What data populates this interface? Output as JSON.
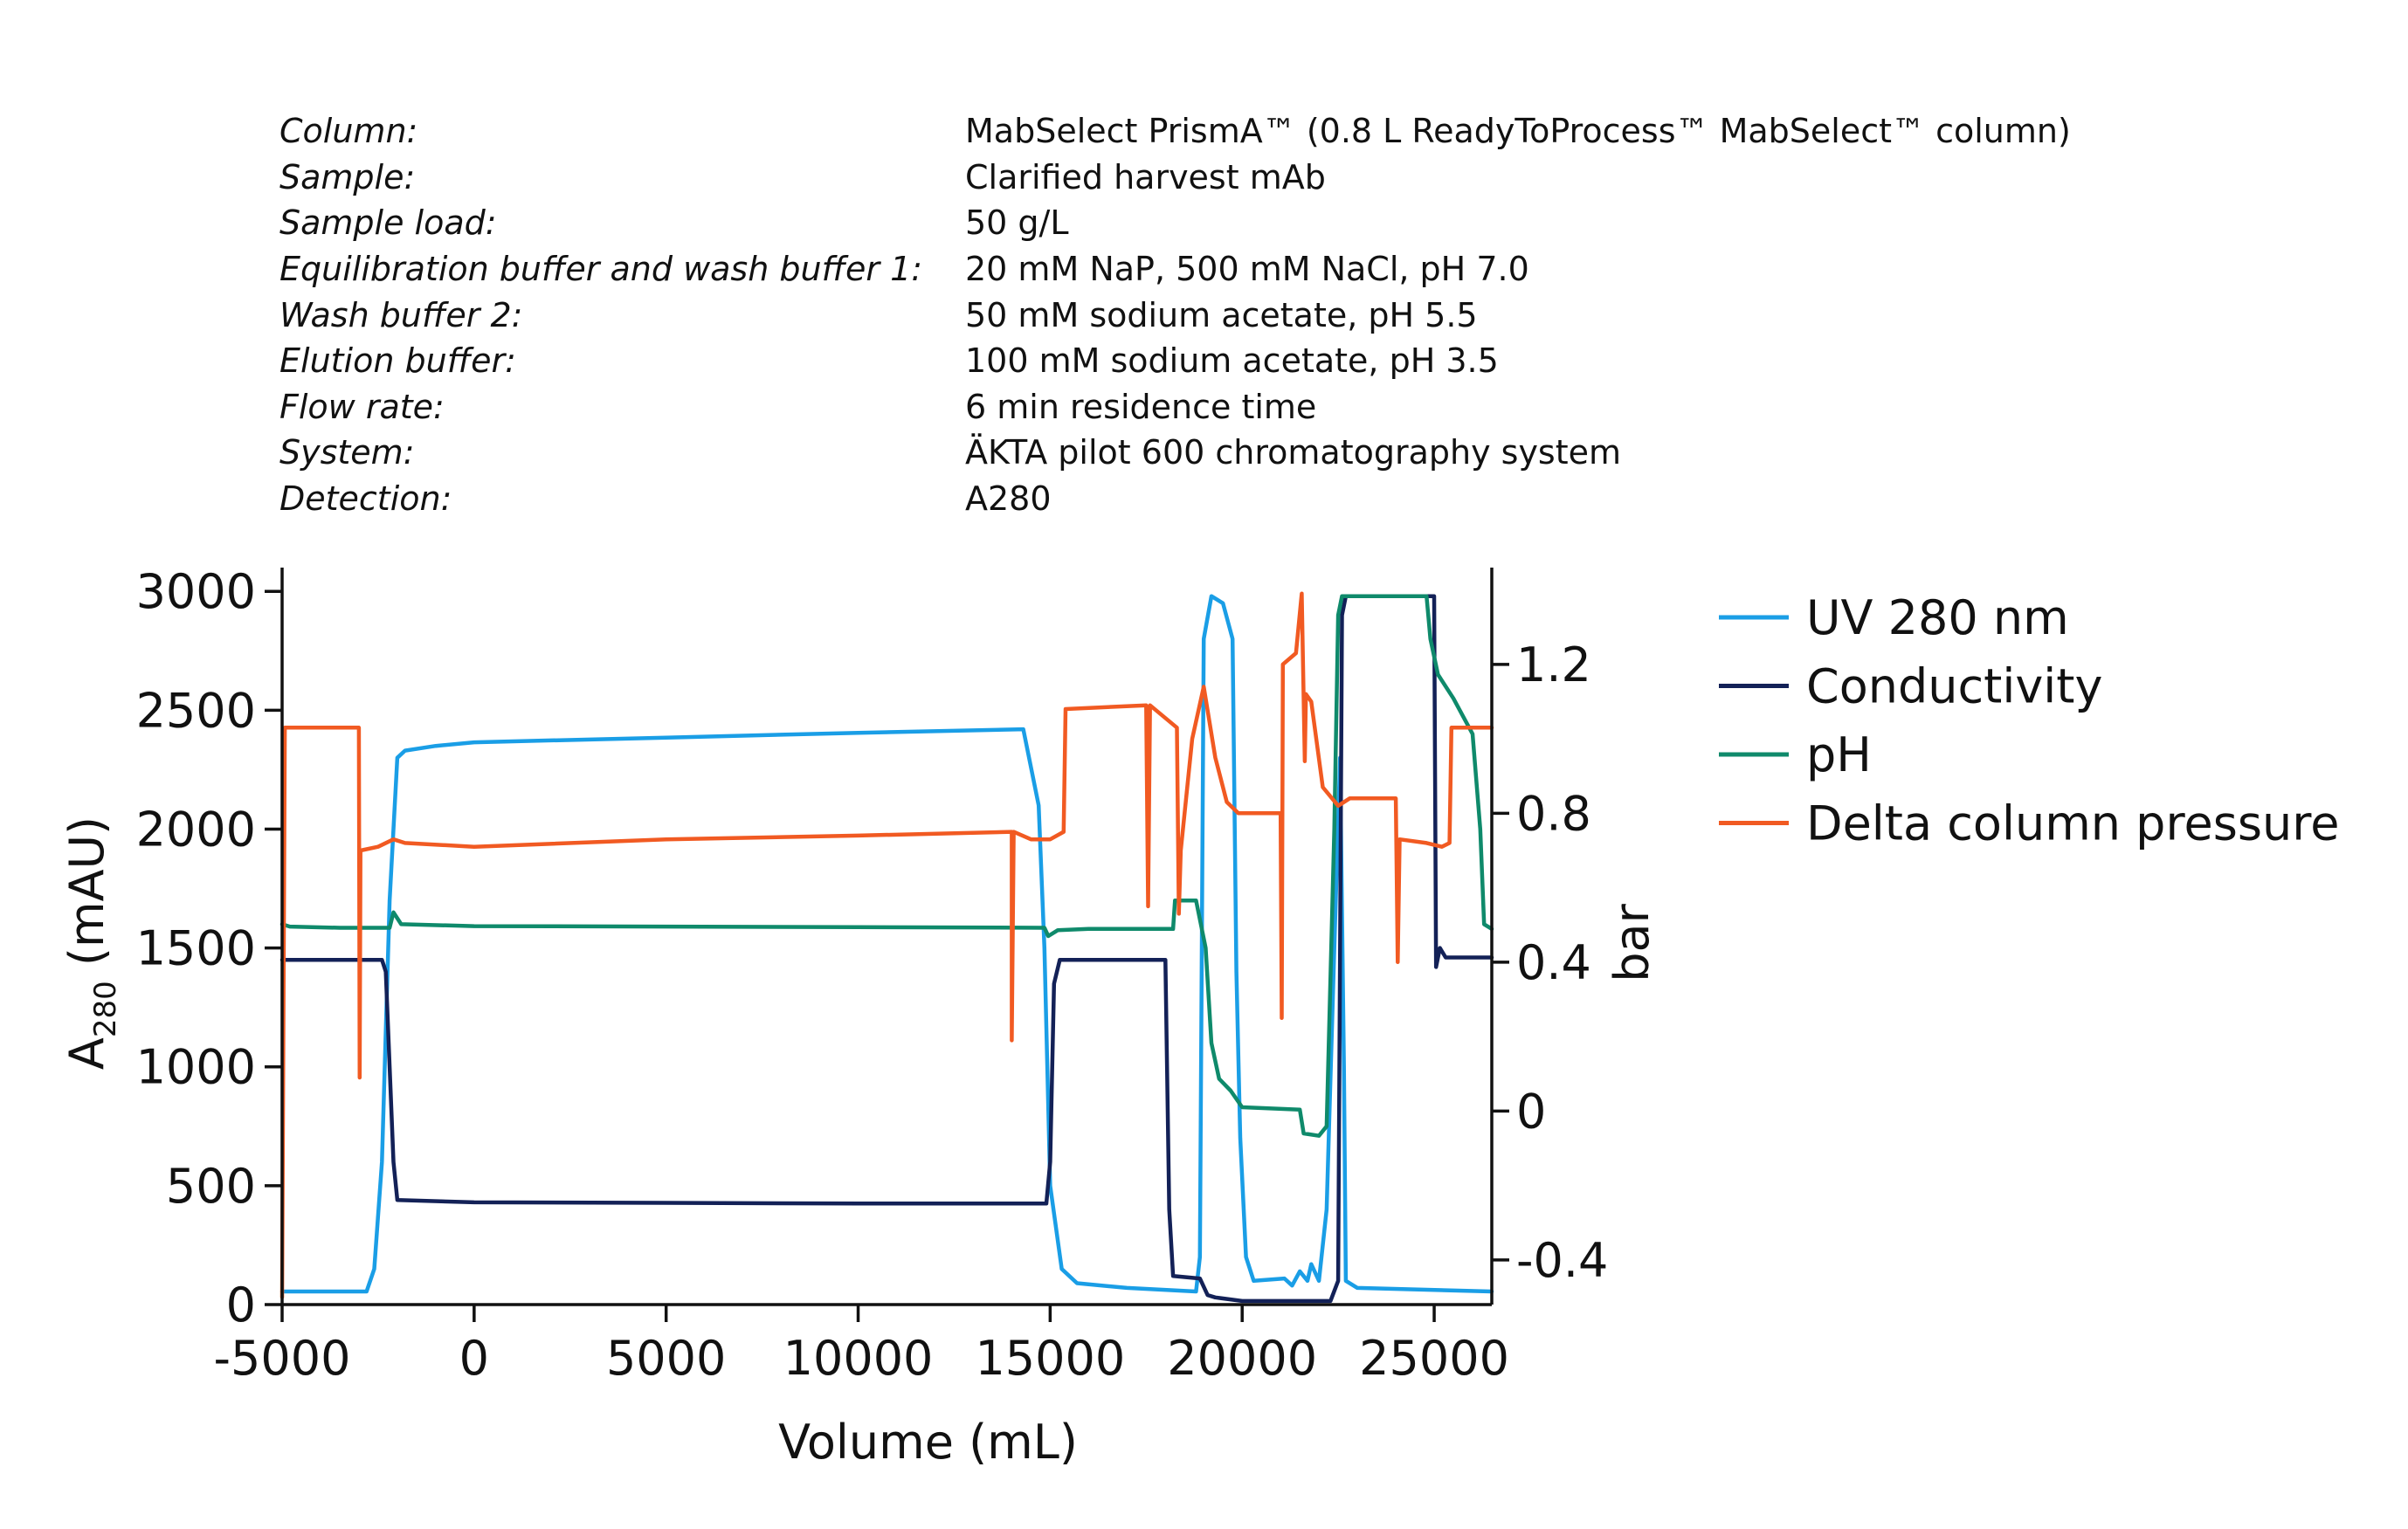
{
  "info": [
    {
      "label": "Column:",
      "value": "MabSelect PrismA™ (0.8 L ReadyToProcess™ MabSelect™ column)"
    },
    {
      "label": "Sample:",
      "value": "Clarified harvest mAb"
    },
    {
      "label": "Sample load:",
      "value": "50 g/L"
    },
    {
      "label": "Equilibration buffer and wash buffer 1:",
      "value": "20 mM NaP, 500 mM NaCl, pH 7.0"
    },
    {
      "label": "Wash buffer 2:",
      "value": "50 mM sodium acetate, pH 5.5"
    },
    {
      "label": "Elution buffer:",
      "value": "100 mM sodium acetate, pH 3.5"
    },
    {
      "label": "Flow rate:",
      "value": "6 min residence time"
    },
    {
      "label": "System:",
      "value": "ÄKTA pilot 600 chromatography system"
    },
    {
      "label": "Detection:",
      "value": "A280"
    }
  ],
  "chart_data": {
    "type": "line",
    "xlabel": "Volume (mL)",
    "ylabel_main": "A",
    "ylabel_sub": "280",
    "ylabel_unit": " (mAU)",
    "y2label": "bar",
    "xlim": [
      -5000,
      26500
    ],
    "ylim": [
      0,
      3100
    ],
    "y2lim": [
      -0.52,
      1.46
    ],
    "xticks": [
      -5000,
      0,
      5000,
      10000,
      15000,
      20000,
      25000
    ],
    "yticks": [
      0,
      500,
      1000,
      1500,
      2000,
      2500,
      3000
    ],
    "y2ticks": [
      -0.4,
      0,
      0.4,
      0.8,
      1.2
    ],
    "y2tick_labels": [
      "-0.4",
      "0",
      "0.4",
      "0.8",
      "1.2"
    ],
    "legend_position": "right",
    "series": [
      {
        "name": "UV 280 nm",
        "color": "#1a9ee6",
        "axis": "left",
        "points": [
          [
            -5000,
            55
          ],
          [
            -2800,
            55
          ],
          [
            -2600,
            150
          ],
          [
            -2400,
            600
          ],
          [
            -2200,
            1700
          ],
          [
            -2000,
            2300
          ],
          [
            -1800,
            2330
          ],
          [
            -1000,
            2350
          ],
          [
            0,
            2365
          ],
          [
            5000,
            2385
          ],
          [
            10000,
            2405
          ],
          [
            14300,
            2420
          ],
          [
            14450,
            2300
          ],
          [
            14700,
            2100
          ],
          [
            14850,
            1500
          ],
          [
            15000,
            500
          ],
          [
            15300,
            150
          ],
          [
            15700,
            90
          ],
          [
            17000,
            70
          ],
          [
            18800,
            55
          ],
          [
            18900,
            200
          ],
          [
            19000,
            2800
          ],
          [
            19200,
            2980
          ],
          [
            19500,
            2950
          ],
          [
            19750,
            2800
          ],
          [
            19850,
            1400
          ],
          [
            19950,
            700
          ],
          [
            20100,
            200
          ],
          [
            20300,
            100
          ],
          [
            21100,
            110
          ],
          [
            21300,
            80
          ],
          [
            21500,
            140
          ],
          [
            21700,
            100
          ],
          [
            21800,
            170
          ],
          [
            22000,
            100
          ],
          [
            22200,
            400
          ],
          [
            22400,
            1500
          ],
          [
            22550,
            2300
          ],
          [
            22650,
            1000
          ],
          [
            22700,
            100
          ],
          [
            23000,
            70
          ],
          [
            26500,
            55
          ]
        ]
      },
      {
        "name": "Conductivity",
        "color": "#132157",
        "axis": "left",
        "points": [
          [
            -5000,
            1450
          ],
          [
            -2400,
            1450
          ],
          [
            -2300,
            1400
          ],
          [
            -2100,
            600
          ],
          [
            -2000,
            440
          ],
          [
            0,
            430
          ],
          [
            5000,
            428
          ],
          [
            10000,
            425
          ],
          [
            14900,
            425
          ],
          [
            15000,
            600
          ],
          [
            15100,
            1350
          ],
          [
            15250,
            1450
          ],
          [
            18000,
            1450
          ],
          [
            18100,
            400
          ],
          [
            18200,
            120
          ],
          [
            18900,
            110
          ],
          [
            19100,
            40
          ],
          [
            19300,
            30
          ],
          [
            20000,
            15
          ],
          [
            22300,
            15
          ],
          [
            22500,
            100
          ],
          [
            22600,
            2900
          ],
          [
            22700,
            2980
          ],
          [
            25000,
            2980
          ],
          [
            25050,
            1420
          ],
          [
            25150,
            1500
          ],
          [
            25300,
            1460
          ],
          [
            26500,
            1460
          ]
        ]
      },
      {
        "name": "pH",
        "color": "#0f8a6b",
        "axis": "left",
        "points": [
          [
            -5000,
            1600
          ],
          [
            -4800,
            1590
          ],
          [
            -3500,
            1585
          ],
          [
            -2200,
            1585
          ],
          [
            -2100,
            1650
          ],
          [
            -1900,
            1600
          ],
          [
            0,
            1592
          ],
          [
            5000,
            1590
          ],
          [
            10000,
            1588
          ],
          [
            14850,
            1585
          ],
          [
            14950,
            1550
          ],
          [
            15200,
            1575
          ],
          [
            16000,
            1580
          ],
          [
            18200,
            1580
          ],
          [
            18250,
            1700
          ],
          [
            18800,
            1700
          ],
          [
            19050,
            1500
          ],
          [
            19200,
            1100
          ],
          [
            19400,
            950
          ],
          [
            19700,
            900
          ],
          [
            20000,
            830
          ],
          [
            21500,
            820
          ],
          [
            21600,
            720
          ],
          [
            22000,
            710
          ],
          [
            22200,
            750
          ],
          [
            22400,
            2000
          ],
          [
            22500,
            2900
          ],
          [
            22600,
            2980
          ],
          [
            24800,
            2980
          ],
          [
            24900,
            2800
          ],
          [
            25100,
            2650
          ],
          [
            25500,
            2550
          ],
          [
            26000,
            2400
          ],
          [
            26200,
            2000
          ],
          [
            26300,
            1600
          ],
          [
            26500,
            1580
          ]
        ]
      },
      {
        "name": "Delta column pressure",
        "color": "#f15a22",
        "axis": "right",
        "points": [
          [
            -5000,
            -0.5
          ],
          [
            -4930,
            1.03
          ],
          [
            -3000,
            1.03
          ],
          [
            -2980,
            0.09
          ],
          [
            -2960,
            0.7
          ],
          [
            -2500,
            0.71
          ],
          [
            -2100,
            0.73
          ],
          [
            -1800,
            0.72
          ],
          [
            0,
            0.71
          ],
          [
            5000,
            0.73
          ],
          [
            10000,
            0.74
          ],
          [
            14000,
            0.75
          ],
          [
            14000,
            0.19
          ],
          [
            14050,
            0.75
          ],
          [
            14500,
            0.73
          ],
          [
            15000,
            0.73
          ],
          [
            15350,
            0.75
          ],
          [
            15400,
            1.08
          ],
          [
            17500,
            1.09
          ],
          [
            17550,
            0.55
          ],
          [
            17600,
            1.09
          ],
          [
            18300,
            1.03
          ],
          [
            18350,
            0.53
          ],
          [
            18400,
            0.7
          ],
          [
            18700,
            1.0
          ],
          [
            19000,
            1.14
          ],
          [
            19300,
            0.95
          ],
          [
            19600,
            0.83
          ],
          [
            19900,
            0.8
          ],
          [
            21000,
            0.8
          ],
          [
            21030,
            0.25
          ],
          [
            21060,
            1.2
          ],
          [
            21400,
            1.23
          ],
          [
            21550,
            1.39
          ],
          [
            21630,
            0.94
          ],
          [
            21660,
            1.12
          ],
          [
            21800,
            1.1
          ],
          [
            22100,
            0.87
          ],
          [
            22500,
            0.82
          ],
          [
            22800,
            0.84
          ],
          [
            24000,
            0.84
          ],
          [
            24050,
            0.4
          ],
          [
            24100,
            0.73
          ],
          [
            24800,
            0.72
          ],
          [
            25200,
            0.71
          ],
          [
            25400,
            0.72
          ],
          [
            25450,
            1.03
          ],
          [
            26500,
            1.03
          ]
        ]
      }
    ]
  }
}
